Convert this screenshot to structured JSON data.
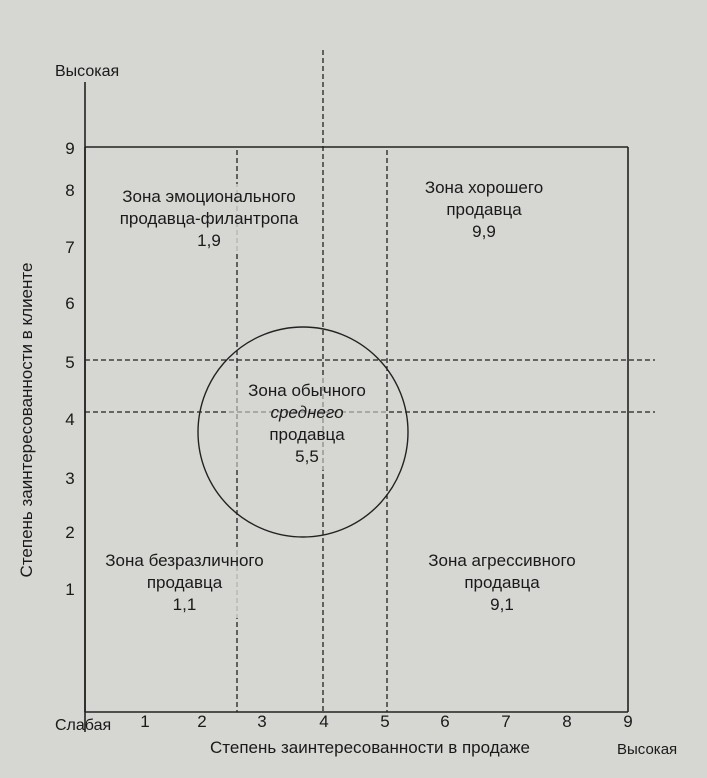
{
  "chart_data": {
    "type": "grid",
    "x_axis": {
      "label": "Степень заинтересованности в продаже",
      "low_label": "Слабая",
      "high_label": "Высокая",
      "ticks": [
        "1",
        "2",
        "3",
        "4",
        "5",
        "6",
        "7",
        "8",
        "9"
      ]
    },
    "y_axis": {
      "label": "Степень заинтересованности в клиенте",
      "high_label": "Высокая",
      "ticks": [
        "1",
        "2",
        "3",
        "4",
        "5",
        "6",
        "7",
        "8",
        "9"
      ]
    },
    "zones": [
      {
        "line1": "Зона эмоционального",
        "line2": "продавца-филантропа",
        "line3": "",
        "coord": "1,9",
        "x": 1,
        "y": 9
      },
      {
        "line1": "Зона хорошего",
        "line2": "продавца",
        "line3": "",
        "coord": "9,9",
        "x": 9,
        "y": 9
      },
      {
        "line1": "Зона обычного",
        "line2": "среднего",
        "line3": "продавца",
        "coord": "5,5",
        "x": 5,
        "y": 5
      },
      {
        "line1": "Зона безразличного",
        "line2": "продавца",
        "line3": "",
        "coord": "1,1",
        "x": 1,
        "y": 1
      },
      {
        "line1": "Зона агрессивного",
        "line2": "продавца",
        "line3": "",
        "coord": "9,1",
        "x": 9,
        "y": 1
      }
    ]
  }
}
